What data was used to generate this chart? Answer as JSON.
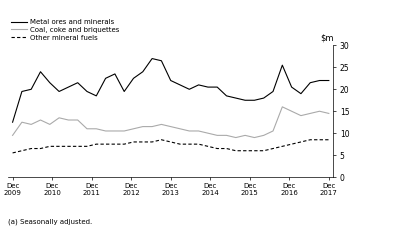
{
  "footnote": "(a) Seasonally adjusted.",
  "xlabels": [
    "Dec\n2009",
    "Dec\n2010",
    "Dec\n2011",
    "Dec\n2012",
    "Dec\n2013",
    "Dec\n2014",
    "Dec\n2015",
    "Dec\n2016",
    "Dec\n2017"
  ],
  "ylim": [
    0,
    30
  ],
  "yticks": [
    0,
    5,
    10,
    15,
    20,
    25,
    30
  ],
  "legend": [
    "Metal ores and minerals",
    "Coal, coke and briquettes",
    "Other mineral fuels"
  ],
  "metal_ores": [
    12.5,
    19.5,
    20.0,
    24.0,
    21.5,
    19.5,
    20.5,
    21.5,
    19.5,
    18.5,
    22.5,
    23.5,
    19.5,
    22.5,
    24.0,
    27.0,
    26.5,
    22.0,
    21.0,
    20.0,
    21.0,
    20.5,
    20.5,
    18.5,
    18.0,
    17.5,
    17.5,
    18.0,
    19.5,
    25.5,
    20.5,
    19.0,
    21.5,
    22.0,
    22.0
  ],
  "coal": [
    9.5,
    12.5,
    12.0,
    13.0,
    12.0,
    13.5,
    13.0,
    13.0,
    11.0,
    11.0,
    10.5,
    10.5,
    10.5,
    11.0,
    11.5,
    11.5,
    12.0,
    11.5,
    11.0,
    10.5,
    10.5,
    10.0,
    9.5,
    9.5,
    9.0,
    9.5,
    9.0,
    9.5,
    10.5,
    16.0,
    15.0,
    14.0,
    14.5,
    15.0,
    14.5
  ],
  "other_fuels": [
    5.5,
    6.0,
    6.5,
    6.5,
    7.0,
    7.0,
    7.0,
    7.0,
    7.0,
    7.5,
    7.5,
    7.5,
    7.5,
    8.0,
    8.0,
    8.0,
    8.5,
    8.0,
    7.5,
    7.5,
    7.5,
    7.0,
    6.5,
    6.5,
    6.0,
    6.0,
    6.0,
    6.0,
    6.5,
    7.0,
    7.5,
    8.0,
    8.5,
    8.5,
    8.5
  ],
  "metal_color": "#000000",
  "coal_color": "#aaaaaa",
  "other_color": "#000000",
  "background_color": "#ffffff",
  "n_points": 35
}
